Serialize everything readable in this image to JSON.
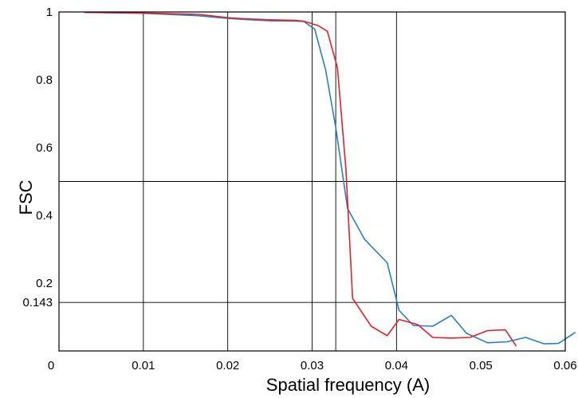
{
  "chart_data": {
    "type": "line",
    "title": "",
    "xlabel": "Spatial frequency (A)",
    "ylabel": "FSC",
    "xlim": [
      0,
      0.06
    ],
    "ylim": [
      0,
      1
    ],
    "x_ticks": [
      {
        "value": 0,
        "label": "0"
      },
      {
        "value": 0.01,
        "label": "0.01"
      },
      {
        "value": 0.02,
        "label": "0.02"
      },
      {
        "value": 0.03,
        "label": "0.03"
      },
      {
        "value": 0.04,
        "label": "0.04"
      },
      {
        "value": 0.05,
        "label": "0.05"
      },
      {
        "value": 0.06,
        "label": "0.06"
      }
    ],
    "y_ticks": [
      {
        "value": 1,
        "label": "1"
      },
      {
        "value": 0.8,
        "label": "0.8"
      },
      {
        "value": 0.6,
        "label": "0.6"
      },
      {
        "value": 0.4,
        "label": "0.4"
      },
      {
        "value": 0.2,
        "label": "0.2"
      },
      {
        "value": 0.143,
        "label": "0.143"
      }
    ],
    "vertical_reference_lines": [
      0.01,
      0.02,
      0.03,
      0.0328,
      0.04
    ],
    "horizontal_reference_lines": [
      0.5,
      0.143
    ],
    "grid": false,
    "series": [
      {
        "color": "#2a7fc4",
        "x": [
          0.003,
          0.01,
          0.0165,
          0.02,
          0.022,
          0.025,
          0.028,
          0.029,
          0.0303,
          0.0316,
          0.0328,
          0.0342,
          0.0362,
          0.0389,
          0.0403,
          0.042,
          0.0443,
          0.0465,
          0.0483,
          0.0508,
          0.0531,
          0.0553,
          0.0575,
          0.0592,
          0.0612
        ],
        "y": [
          0.999,
          0.996,
          0.989,
          0.981,
          0.978,
          0.974,
          0.973,
          0.972,
          0.95,
          0.83,
          0.66,
          0.42,
          0.33,
          0.26,
          0.12,
          0.075,
          0.073,
          0.105,
          0.052,
          0.024,
          0.027,
          0.04,
          0.021,
          0.022,
          0.055
        ]
      },
      {
        "color": "#e8202a",
        "x": [
          0.003,
          0.01,
          0.0165,
          0.02,
          0.022,
          0.025,
          0.028,
          0.029,
          0.0307,
          0.0318,
          0.033,
          0.034,
          0.0348,
          0.037,
          0.0389,
          0.0403,
          0.0425,
          0.0443,
          0.0465,
          0.0487,
          0.0508,
          0.0529,
          0.0542
        ],
        "y": [
          0.999,
          0.997,
          0.993,
          0.983,
          0.98,
          0.977,
          0.975,
          0.973,
          0.96,
          0.943,
          0.835,
          0.54,
          0.155,
          0.073,
          0.045,
          0.093,
          0.078,
          0.04,
          0.038,
          0.04,
          0.06,
          0.062,
          0.014
        ]
      }
    ]
  }
}
